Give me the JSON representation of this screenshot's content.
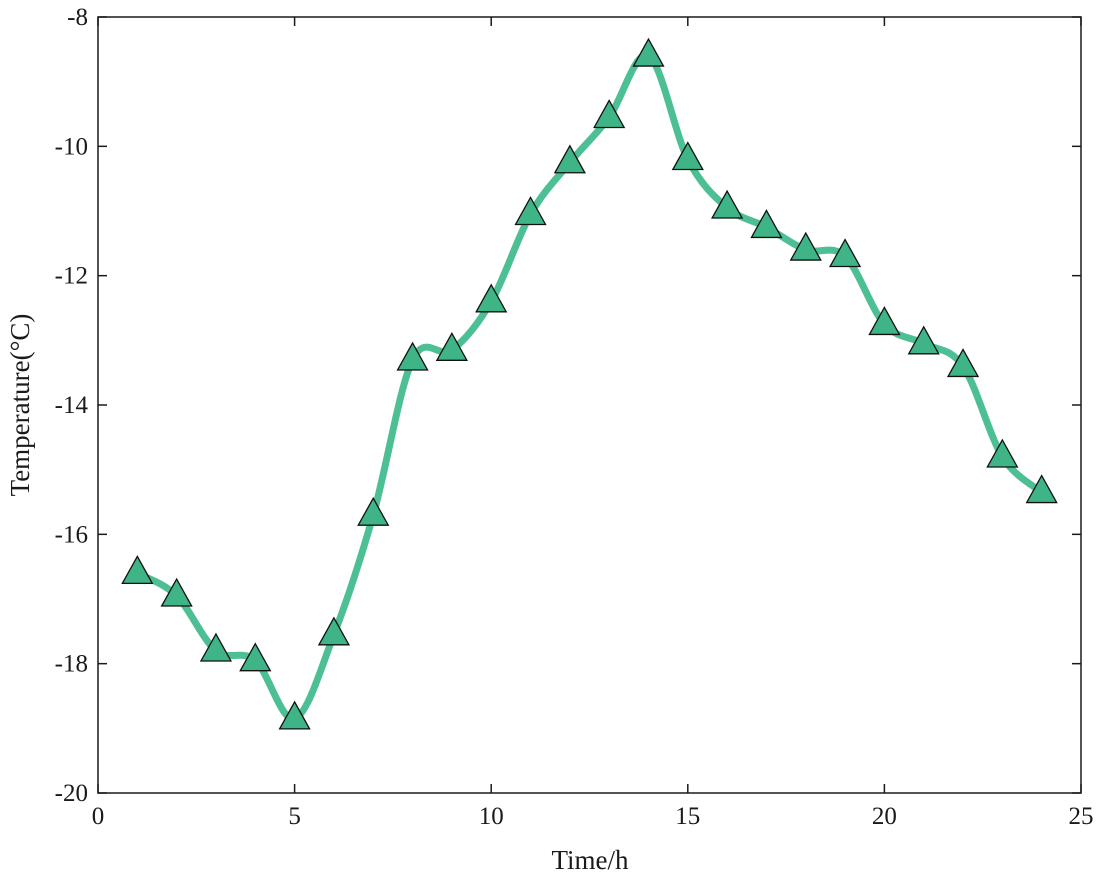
{
  "chart_data": {
    "type": "line",
    "xlabel": "Time/h",
    "ylabel": "Temperature(°C)",
    "xlim": [
      0,
      25
    ],
    "ylim": [
      -20,
      -8
    ],
    "xticks": [
      0,
      5,
      10,
      15,
      20,
      25
    ],
    "yticks": [
      -20,
      -18,
      -16,
      -14,
      -12,
      -10,
      -8
    ],
    "grid": false,
    "series": [
      {
        "marker": "triangle",
        "line_color": "#4dbf94",
        "marker_color": "#3fb587",
        "x": [
          1,
          2,
          3,
          4,
          5,
          6,
          7,
          8,
          9,
          10,
          11,
          12,
          13,
          14,
          15,
          16,
          17,
          18,
          19,
          20,
          21,
          22,
          23,
          24
        ],
        "y": [
          -16.6,
          -16.95,
          -17.8,
          -17.95,
          -18.85,
          -17.55,
          -15.7,
          -13.3,
          -13.15,
          -12.4,
          -11.05,
          -10.25,
          -9.55,
          -8.6,
          -10.2,
          -10.95,
          -11.25,
          -11.6,
          -11.7,
          -12.75,
          -13.05,
          -13.4,
          -14.8,
          -15.35
        ]
      }
    ]
  }
}
